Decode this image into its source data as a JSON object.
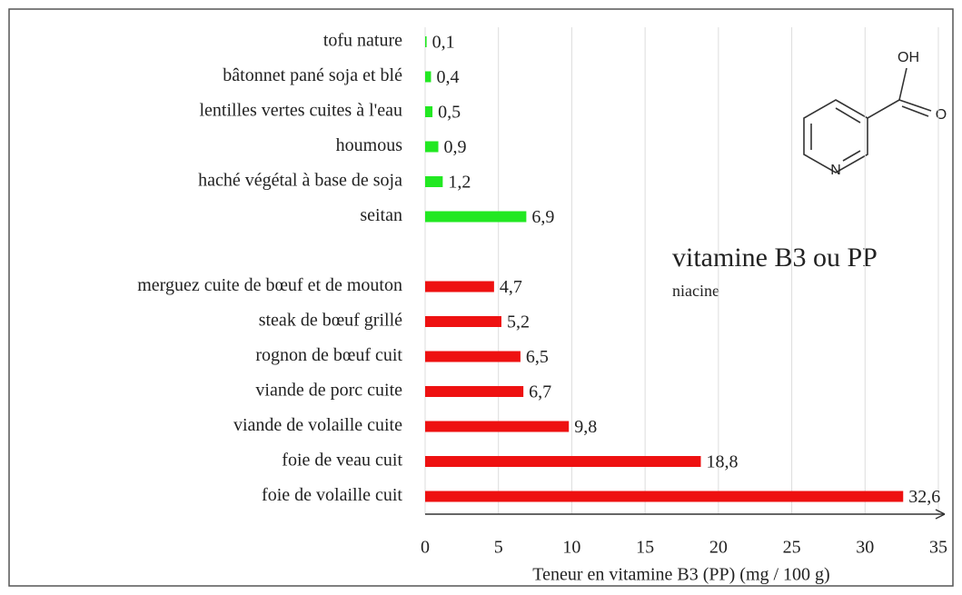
{
  "chart_data": {
    "type": "bar",
    "orientation": "horizontal",
    "categories": [
      "tofu nature",
      "bâtonnet pané soja et blé",
      "lentilles vertes cuites à l'eau",
      "houmous",
      "haché végétal à base de soja",
      "seitan",
      null,
      "merguez cuite de bœuf et de mouton",
      "steak de bœuf grillé",
      "rognon de bœuf cuit",
      "viande de porc cuite",
      "viande de volaille cuite",
      "foie de veau cuit",
      "foie de volaille cuit"
    ],
    "values": [
      0.1,
      0.4,
      0.5,
      0.9,
      1.2,
      6.9,
      null,
      4.7,
      5.2,
      6.5,
      6.7,
      9.8,
      18.8,
      32.6
    ],
    "value_labels": [
      "0,1",
      "0,4",
      "0,5",
      "0,9",
      "1,2",
      "6,9",
      null,
      "4,7",
      "5,2",
      "6,5",
      "6,7",
      "9,8",
      "18,8",
      "32,6"
    ],
    "colors": [
      "#22e822",
      "#22e822",
      "#22e822",
      "#22e822",
      "#22e822",
      "#22e822",
      null,
      "#ee1111",
      "#ee1111",
      "#ee1111",
      "#ee1111",
      "#ee1111",
      "#ee1111",
      "#ee1111"
    ],
    "xlabel": "Teneur en vitamine B3 (PP) (mg / 100 g)",
    "xlim": [
      0,
      35
    ],
    "xticks": [
      0,
      5,
      10,
      15,
      20,
      25,
      30,
      35
    ],
    "grid": true,
    "annotations": [
      "vitamine B3 ou PP",
      "niacine",
      "OH",
      "O",
      "N"
    ]
  }
}
